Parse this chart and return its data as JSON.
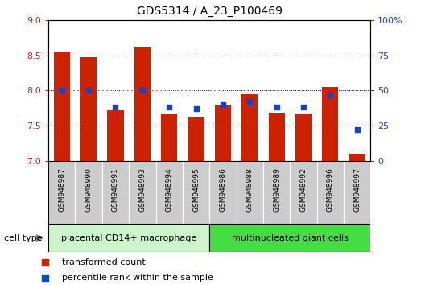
{
  "title": "GDS5314 / A_23_P100469",
  "samples": [
    "GSM948987",
    "GSM948990",
    "GSM948991",
    "GSM948993",
    "GSM948994",
    "GSM948995",
    "GSM948986",
    "GSM948988",
    "GSM948989",
    "GSM948992",
    "GSM948996",
    "GSM948997"
  ],
  "red_values": [
    8.55,
    8.47,
    7.72,
    8.62,
    7.67,
    7.63,
    7.8,
    7.95,
    7.68,
    7.67,
    8.05,
    7.1
  ],
  "blue_values": [
    50,
    50,
    38,
    50,
    38,
    37,
    40,
    42,
    38,
    38,
    47,
    22
  ],
  "group1_label": "placental CD14+ macrophage",
  "group2_label": "multinucleated giant cells",
  "group1_count": 6,
  "group2_count": 6,
  "cell_type_label": "cell type",
  "legend1": "transformed count",
  "legend2": "percentile rank within the sample",
  "ylim_left": [
    7,
    9
  ],
  "ylim_right": [
    0,
    100
  ],
  "yticks_left": [
    7,
    7.5,
    8,
    8.5,
    9
  ],
  "yticks_right": [
    0,
    25,
    50,
    75,
    100
  ],
  "bar_color": "#cc2200",
  "dot_color": "#1144cc",
  "group1_bg": "#ccf5cc",
  "group2_bg": "#44dd44",
  "sample_bg": "#cccccc",
  "bar_bottom": 7.0,
  "bar_width": 0.6
}
